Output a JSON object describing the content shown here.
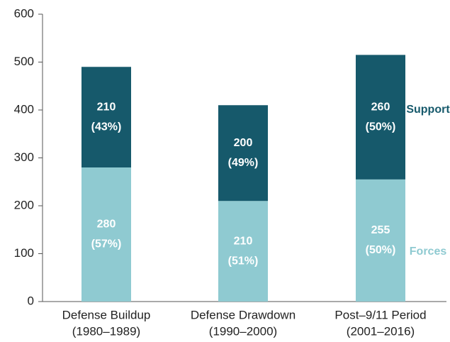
{
  "chart_data": {
    "type": "stacked_bar",
    "categories": [
      [
        "Defense Buildup",
        "(1980–1989)"
      ],
      [
        "Defense Drawdown",
        "(1990–2000)"
      ],
      [
        "Post–9/11 Period",
        "(2001–2016)"
      ]
    ],
    "series": [
      {
        "name": "Forces",
        "color": "#8fcad1",
        "values": [
          280,
          210,
          255
        ],
        "share_labels": [
          "(57%)",
          "(51%)",
          "(50%)"
        ]
      },
      {
        "name": "Support",
        "color": "#16596b",
        "values": [
          210,
          200,
          260
        ],
        "share_labels": [
          "(43%)",
          "(49%)",
          "(50%)"
        ]
      }
    ],
    "ylim": [
      0,
      600
    ],
    "yticks": [
      0,
      100,
      200,
      300,
      400,
      500,
      600
    ]
  }
}
